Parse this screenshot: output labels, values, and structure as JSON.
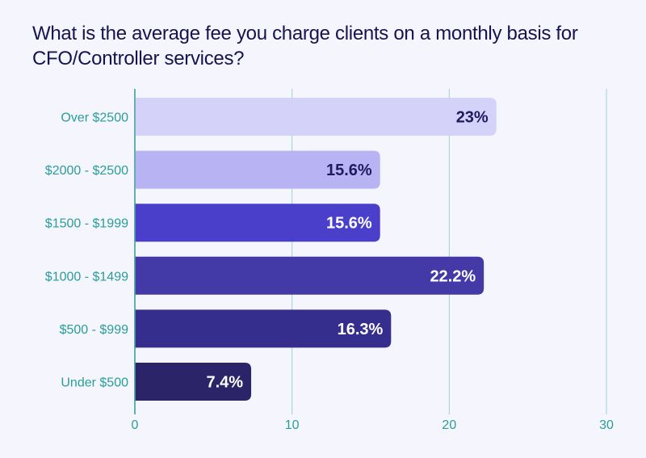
{
  "chart_data": {
    "type": "bar",
    "orientation": "horizontal",
    "title": "What is the average fee you charge clients on a monthly basis for CFO/Controller services?",
    "categories": [
      "Over $2500",
      "$2000 - $2500",
      "$1500 - $1999",
      "$1000 - $1499",
      "$500 - $999",
      "Under $500"
    ],
    "values": [
      23,
      15.6,
      15.6,
      22.2,
      16.3,
      7.4
    ],
    "value_labels": [
      "23%",
      "15.6%",
      "15.6%",
      "22.2%",
      "16.3%",
      "7.4%"
    ],
    "bar_colors": [
      "#d4d2f8",
      "#b8b4f4",
      "#4a3fcb",
      "#433aa8",
      "#362e8c",
      "#2b2468"
    ],
    "label_colors": [
      "#1f1a5e",
      "#1f1a5e",
      "#ffffff",
      "#ffffff",
      "#ffffff",
      "#ffffff"
    ],
    "xlim": [
      0,
      30
    ],
    "xticks": [
      "0",
      "10",
      "20",
      "30"
    ],
    "xtick_values": [
      0,
      10,
      20,
      30
    ],
    "grid": true,
    "xlabel": "",
    "ylabel": ""
  }
}
